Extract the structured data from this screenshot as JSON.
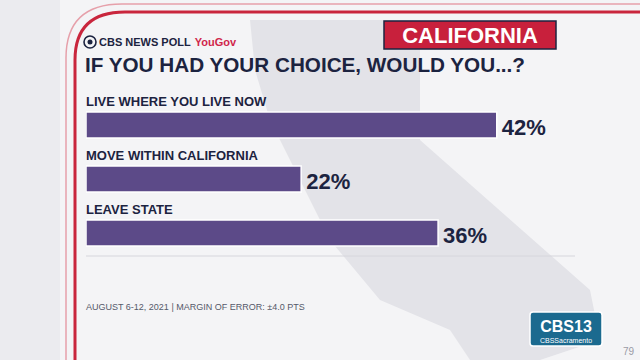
{
  "chart_data": {
    "type": "bar",
    "orientation": "horizontal",
    "source": "CBS NEWS POLL",
    "pollster": "YouGov",
    "region": "CALIFORNIA",
    "title": "IF YOU HAD YOUR CHOICE, WOULD YOU...?",
    "categories": [
      "LIVE WHERE YOU LIVE NOW",
      "MOVE WITHIN CALIFORNIA",
      "LEAVE STATE"
    ],
    "values": [
      42,
      22,
      36
    ],
    "value_labels": [
      "42%",
      "22%",
      "36%"
    ],
    "data_labels": true,
    "color": "#5c4a88",
    "xlim": [
      0,
      50
    ],
    "tick_labels": false,
    "grid": false,
    "footnote": "AUGUST 6-12, 2021 | MARGIN OF ERROR: ±4.0 PTS",
    "station": "CBS13",
    "station_sub": "CBSSacramento",
    "corner_text": "79"
  }
}
